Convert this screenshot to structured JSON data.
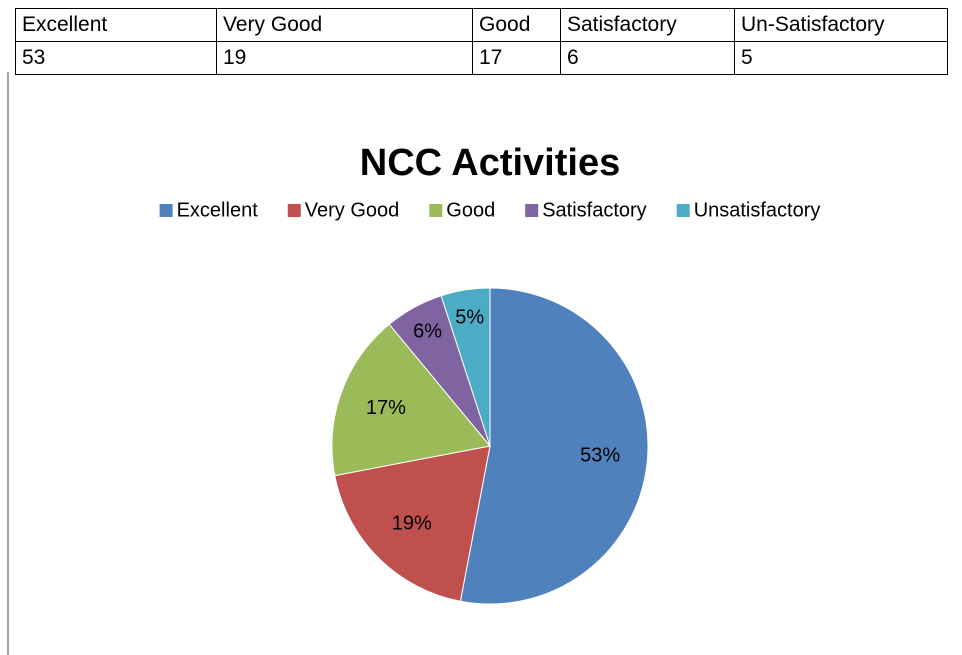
{
  "table": {
    "header": [
      "Excellent",
      "Very Good",
      "Good",
      "Satisfactory",
      "Un-Satisfactory"
    ],
    "rows": [
      [
        53,
        19,
        17,
        6,
        5
      ]
    ]
  },
  "chart_data": {
    "type": "pie",
    "title": "NCC Activities",
    "categories": [
      "Excellent",
      "Very Good",
      "Good",
      "Satisfactory",
      "Unsatisfactory"
    ],
    "values": [
      53,
      19,
      17,
      6,
      5
    ],
    "value_labels": [
      "53%",
      "19%",
      "17%",
      "6%",
      "5%"
    ],
    "colors": [
      "#4f81bd",
      "#c0504d",
      "#9bbb59",
      "#8064a2",
      "#4bacc6"
    ],
    "legend": "top"
  }
}
